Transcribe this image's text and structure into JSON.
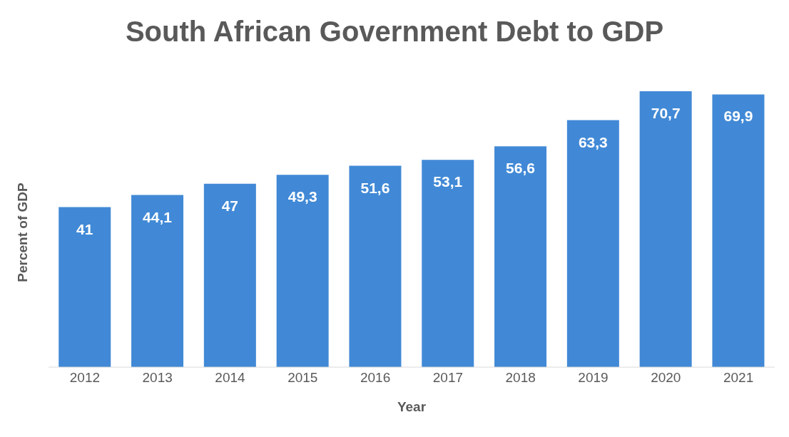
{
  "chart_data": {
    "type": "bar",
    "title": "South African Government Debt to GDP",
    "xlabel": "Year",
    "ylabel": "Percent of GDP",
    "categories": [
      "2012",
      "2013",
      "2014",
      "2015",
      "2016",
      "2017",
      "2018",
      "2019",
      "2020",
      "2021"
    ],
    "values": [
      41,
      44.1,
      47,
      49.3,
      51.6,
      53.1,
      56.6,
      63.3,
      70.7,
      69.9
    ],
    "value_labels": [
      "41",
      "44,1",
      "47",
      "49,3",
      "51,6",
      "53,1",
      "56,6",
      "63,3",
      "70,7",
      "69,9"
    ],
    "color": "#4189d6"
  }
}
